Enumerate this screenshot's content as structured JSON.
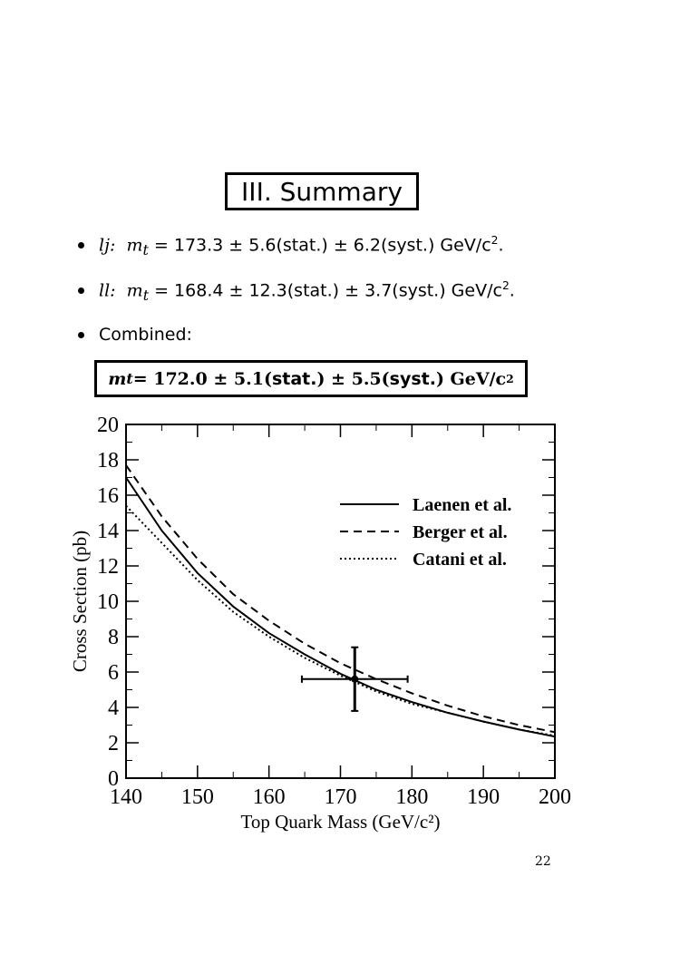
{
  "title": "III. Summary",
  "bullets": [
    {
      "label": "lj:",
      "formula": "m",
      "sub": "t",
      "text": " = 173.3 ± 5.6(stat.) ± 6.2(syst.) GeV/c",
      "sup": "2",
      "end": "."
    },
    {
      "label": "ll:",
      "formula": "m",
      "sub": "t",
      "text": " = 168.4 ± 12.3(stat.) ± 3.7(syst.) GeV/c",
      "sup": "2",
      "end": "."
    },
    {
      "label": "Combined:"
    }
  ],
  "combined": {
    "m": "m",
    "sub": "t",
    "value": " = 172.0 ± 5.1(",
    "stat": "stat.",
    "mid": ") ± 5.5(",
    "syst": "syst.",
    "unit": ") GeV/c",
    "sup": "2"
  },
  "chart_data": {
    "type": "line",
    "xlabel": "Top Quark Mass (GeV/c²)",
    "ylabel": "Cross Section (pb)",
    "xlim": [
      140,
      200
    ],
    "ylim": [
      0,
      20
    ],
    "x_ticks": [
      "140",
      "150",
      "160",
      "170",
      "180",
      "190",
      "200"
    ],
    "y_ticks": [
      "0",
      "2",
      "4",
      "6",
      "8",
      "10",
      "12",
      "14",
      "16",
      "18",
      "20"
    ],
    "legend_position": "top-right",
    "series": [
      {
        "name": "Laenen et al.",
        "style": "solid",
        "x": [
          140,
          145,
          150,
          155,
          160,
          165,
          170,
          175,
          180,
          185,
          190,
          195,
          200
        ],
        "y": [
          17.0,
          14.0,
          11.6,
          9.7,
          8.2,
          7.0,
          5.9,
          5.0,
          4.3,
          3.7,
          3.2,
          2.75,
          2.35
        ]
      },
      {
        "name": "Berger et al.",
        "style": "dashed",
        "x": [
          140,
          145,
          150,
          155,
          160,
          165,
          170,
          175,
          180,
          185,
          190,
          195,
          200
        ],
        "y": [
          17.7,
          14.8,
          12.4,
          10.4,
          8.9,
          7.6,
          6.5,
          5.6,
          4.8,
          4.1,
          3.5,
          3.0,
          2.6
        ]
      },
      {
        "name": "Catani et al.",
        "style": "dotted",
        "x": [
          140,
          145,
          150,
          155,
          160,
          165,
          170,
          175,
          180,
          185,
          190,
          195,
          200
        ],
        "y": [
          15.4,
          13.3,
          11.2,
          9.4,
          8.0,
          6.8,
          5.8,
          4.9,
          4.2,
          3.7,
          3.2,
          2.75,
          2.4
        ]
      }
    ],
    "measurement": {
      "x": 172.0,
      "y": 5.6,
      "x_err": 7.4,
      "y_err": 1.8
    }
  },
  "page_number": "22"
}
